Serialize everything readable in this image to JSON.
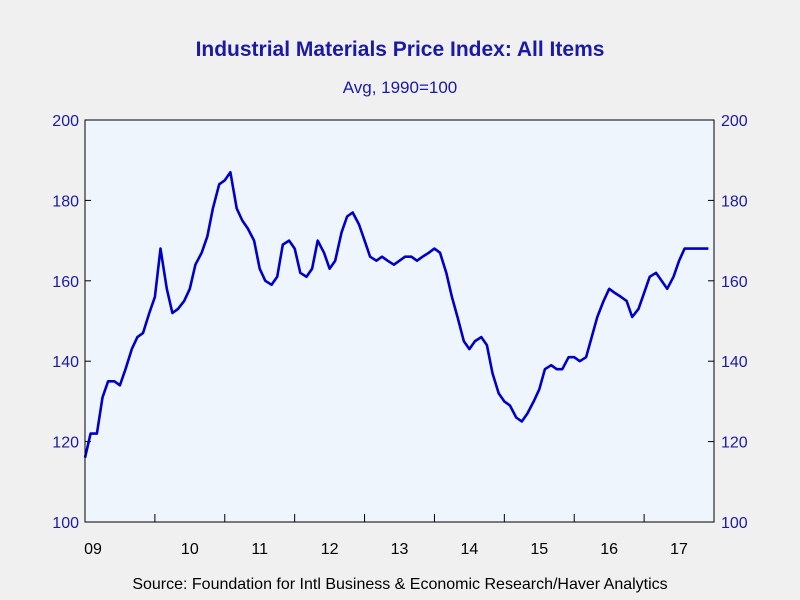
{
  "chart_data": {
    "type": "line",
    "title": "Industrial Materials Price Index: All Items",
    "subtitle": "Avg, 1990=100",
    "source": "Source:  Foundation for Intl Business & Economic Research/Haver Analytics",
    "ylim": [
      100,
      200
    ],
    "y_ticks": [
      100,
      120,
      140,
      160,
      180,
      200
    ],
    "x_tick_labels": [
      "09",
      "10",
      "11",
      "12",
      "13",
      "14",
      "15",
      "16",
      "17"
    ],
    "grid": false,
    "colors": {
      "line": "#0000c8",
      "plot_bg": "#eef5fd",
      "axis": "#000000",
      "tick_label": "#1a1aa6"
    },
    "series": [
      {
        "x": [
          2009.0,
          2009.08,
          2009.17,
          2009.25,
          2009.33,
          2009.42,
          2009.5,
          2009.58,
          2009.67,
          2009.75,
          2009.83,
          2009.92,
          2010.0,
          2010.08,
          2010.17,
          2010.25,
          2010.33,
          2010.42,
          2010.5,
          2010.58,
          2010.67,
          2010.75,
          2010.83,
          2010.92,
          2011.0,
          2011.08,
          2011.17,
          2011.25,
          2011.33,
          2011.42,
          2011.5,
          2011.58,
          2011.67,
          2011.75,
          2011.83,
          2011.92,
          2012.0,
          2012.08,
          2012.17,
          2012.25,
          2012.33,
          2012.42,
          2012.5,
          2012.58,
          2012.67,
          2012.75,
          2012.83,
          2012.92,
          2013.0,
          2013.08,
          2013.17,
          2013.25,
          2013.33,
          2013.42,
          2013.5,
          2013.58,
          2013.67,
          2013.75,
          2013.83,
          2013.92,
          2014.0,
          2014.08,
          2014.17,
          2014.25,
          2014.33,
          2014.42,
          2014.5,
          2014.58,
          2014.67,
          2014.75,
          2014.83,
          2014.92,
          2015.0,
          2015.08,
          2015.17,
          2015.25,
          2015.33,
          2015.42,
          2015.5,
          2015.58,
          2015.67,
          2015.75,
          2015.83,
          2015.92,
          2016.0,
          2016.08,
          2016.17,
          2016.25,
          2016.33,
          2016.42,
          2016.5,
          2016.58,
          2016.67,
          2016.75,
          2016.83,
          2016.92,
          2017.0,
          2017.08,
          2017.17,
          2017.25,
          2017.33,
          2017.42,
          2017.5,
          2017.58,
          2017.67,
          2017.75,
          2017.83,
          2017.92
        ],
        "y": [
          116,
          122,
          122,
          131,
          135,
          135,
          134,
          138,
          143,
          146,
          147,
          152,
          156,
          168,
          158,
          152,
          153,
          155,
          158,
          164,
          167,
          171,
          178,
          184,
          185,
          187,
          178,
          175,
          173,
          170,
          163,
          160,
          159,
          161,
          169,
          170,
          168,
          162,
          161,
          163,
          170,
          167,
          163,
          165,
          172,
          176,
          177,
          174,
          170,
          166,
          165,
          166,
          165,
          164,
          165,
          166,
          166,
          165,
          166,
          167,
          168,
          167,
          162,
          156,
          151,
          145,
          143,
          145,
          146,
          144,
          137,
          132,
          130,
          129,
          126,
          125,
          127,
          130,
          133,
          138,
          139,
          138,
          138,
          141,
          141,
          140,
          141,
          146,
          151,
          155,
          158,
          157,
          156,
          155,
          151,
          153,
          157,
          161,
          162,
          160,
          158,
          161,
          165,
          168,
          168,
          168,
          168,
          168
        ]
      }
    ]
  }
}
